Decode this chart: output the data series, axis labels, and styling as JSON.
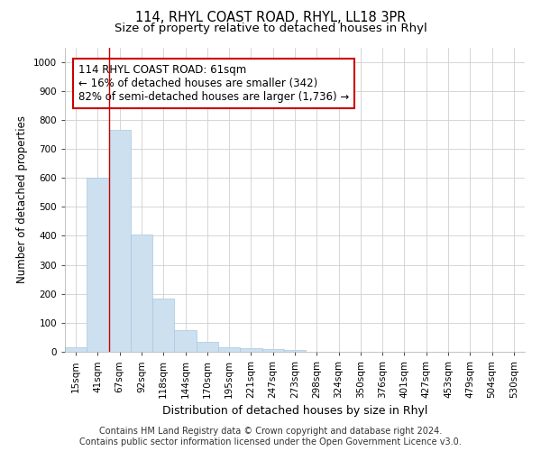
{
  "title1": "114, RHYL COAST ROAD, RHYL, LL18 3PR",
  "title2": "Size of property relative to detached houses in Rhyl",
  "xlabel": "Distribution of detached houses by size in Rhyl",
  "ylabel": "Number of detached properties",
  "bar_color": "#cce0f0",
  "bar_edge_color": "#a8c8e0",
  "grid_color": "#d0d0d0",
  "bg_color": "#ffffff",
  "annotation_box_color": "#cc0000",
  "annotation_line1": "114 RHYL COAST ROAD: 61sqm",
  "annotation_line2": "← 16% of detached houses are smaller (342)",
  "annotation_line3": "82% of semi-detached houses are larger (1,736) →",
  "vline_x": 1.5,
  "vline_color": "#cc0000",
  "categories": [
    "15sqm",
    "41sqm",
    "67sqm",
    "92sqm",
    "118sqm",
    "144sqm",
    "170sqm",
    "195sqm",
    "221sqm",
    "247sqm",
    "273sqm",
    "298sqm",
    "324sqm",
    "350sqm",
    "376sqm",
    "401sqm",
    "427sqm",
    "453sqm",
    "479sqm",
    "504sqm",
    "530sqm"
  ],
  "bar_heights": [
    15,
    600,
    765,
    405,
    185,
    75,
    35,
    15,
    12,
    10,
    5,
    0,
    0,
    0,
    0,
    0,
    0,
    0,
    0,
    0,
    0
  ],
  "ylim": [
    0,
    1050
  ],
  "yticks": [
    0,
    100,
    200,
    300,
    400,
    500,
    600,
    700,
    800,
    900,
    1000
  ],
  "footer1": "Contains HM Land Registry data © Crown copyright and database right 2024.",
  "footer2": "Contains public sector information licensed under the Open Government Licence v3.0.",
  "title_fontsize": 10.5,
  "subtitle_fontsize": 9.5,
  "tick_fontsize": 7.5,
  "ylabel_fontsize": 8.5,
  "xlabel_fontsize": 9,
  "footer_fontsize": 7,
  "annotation_fontsize": 8.5
}
